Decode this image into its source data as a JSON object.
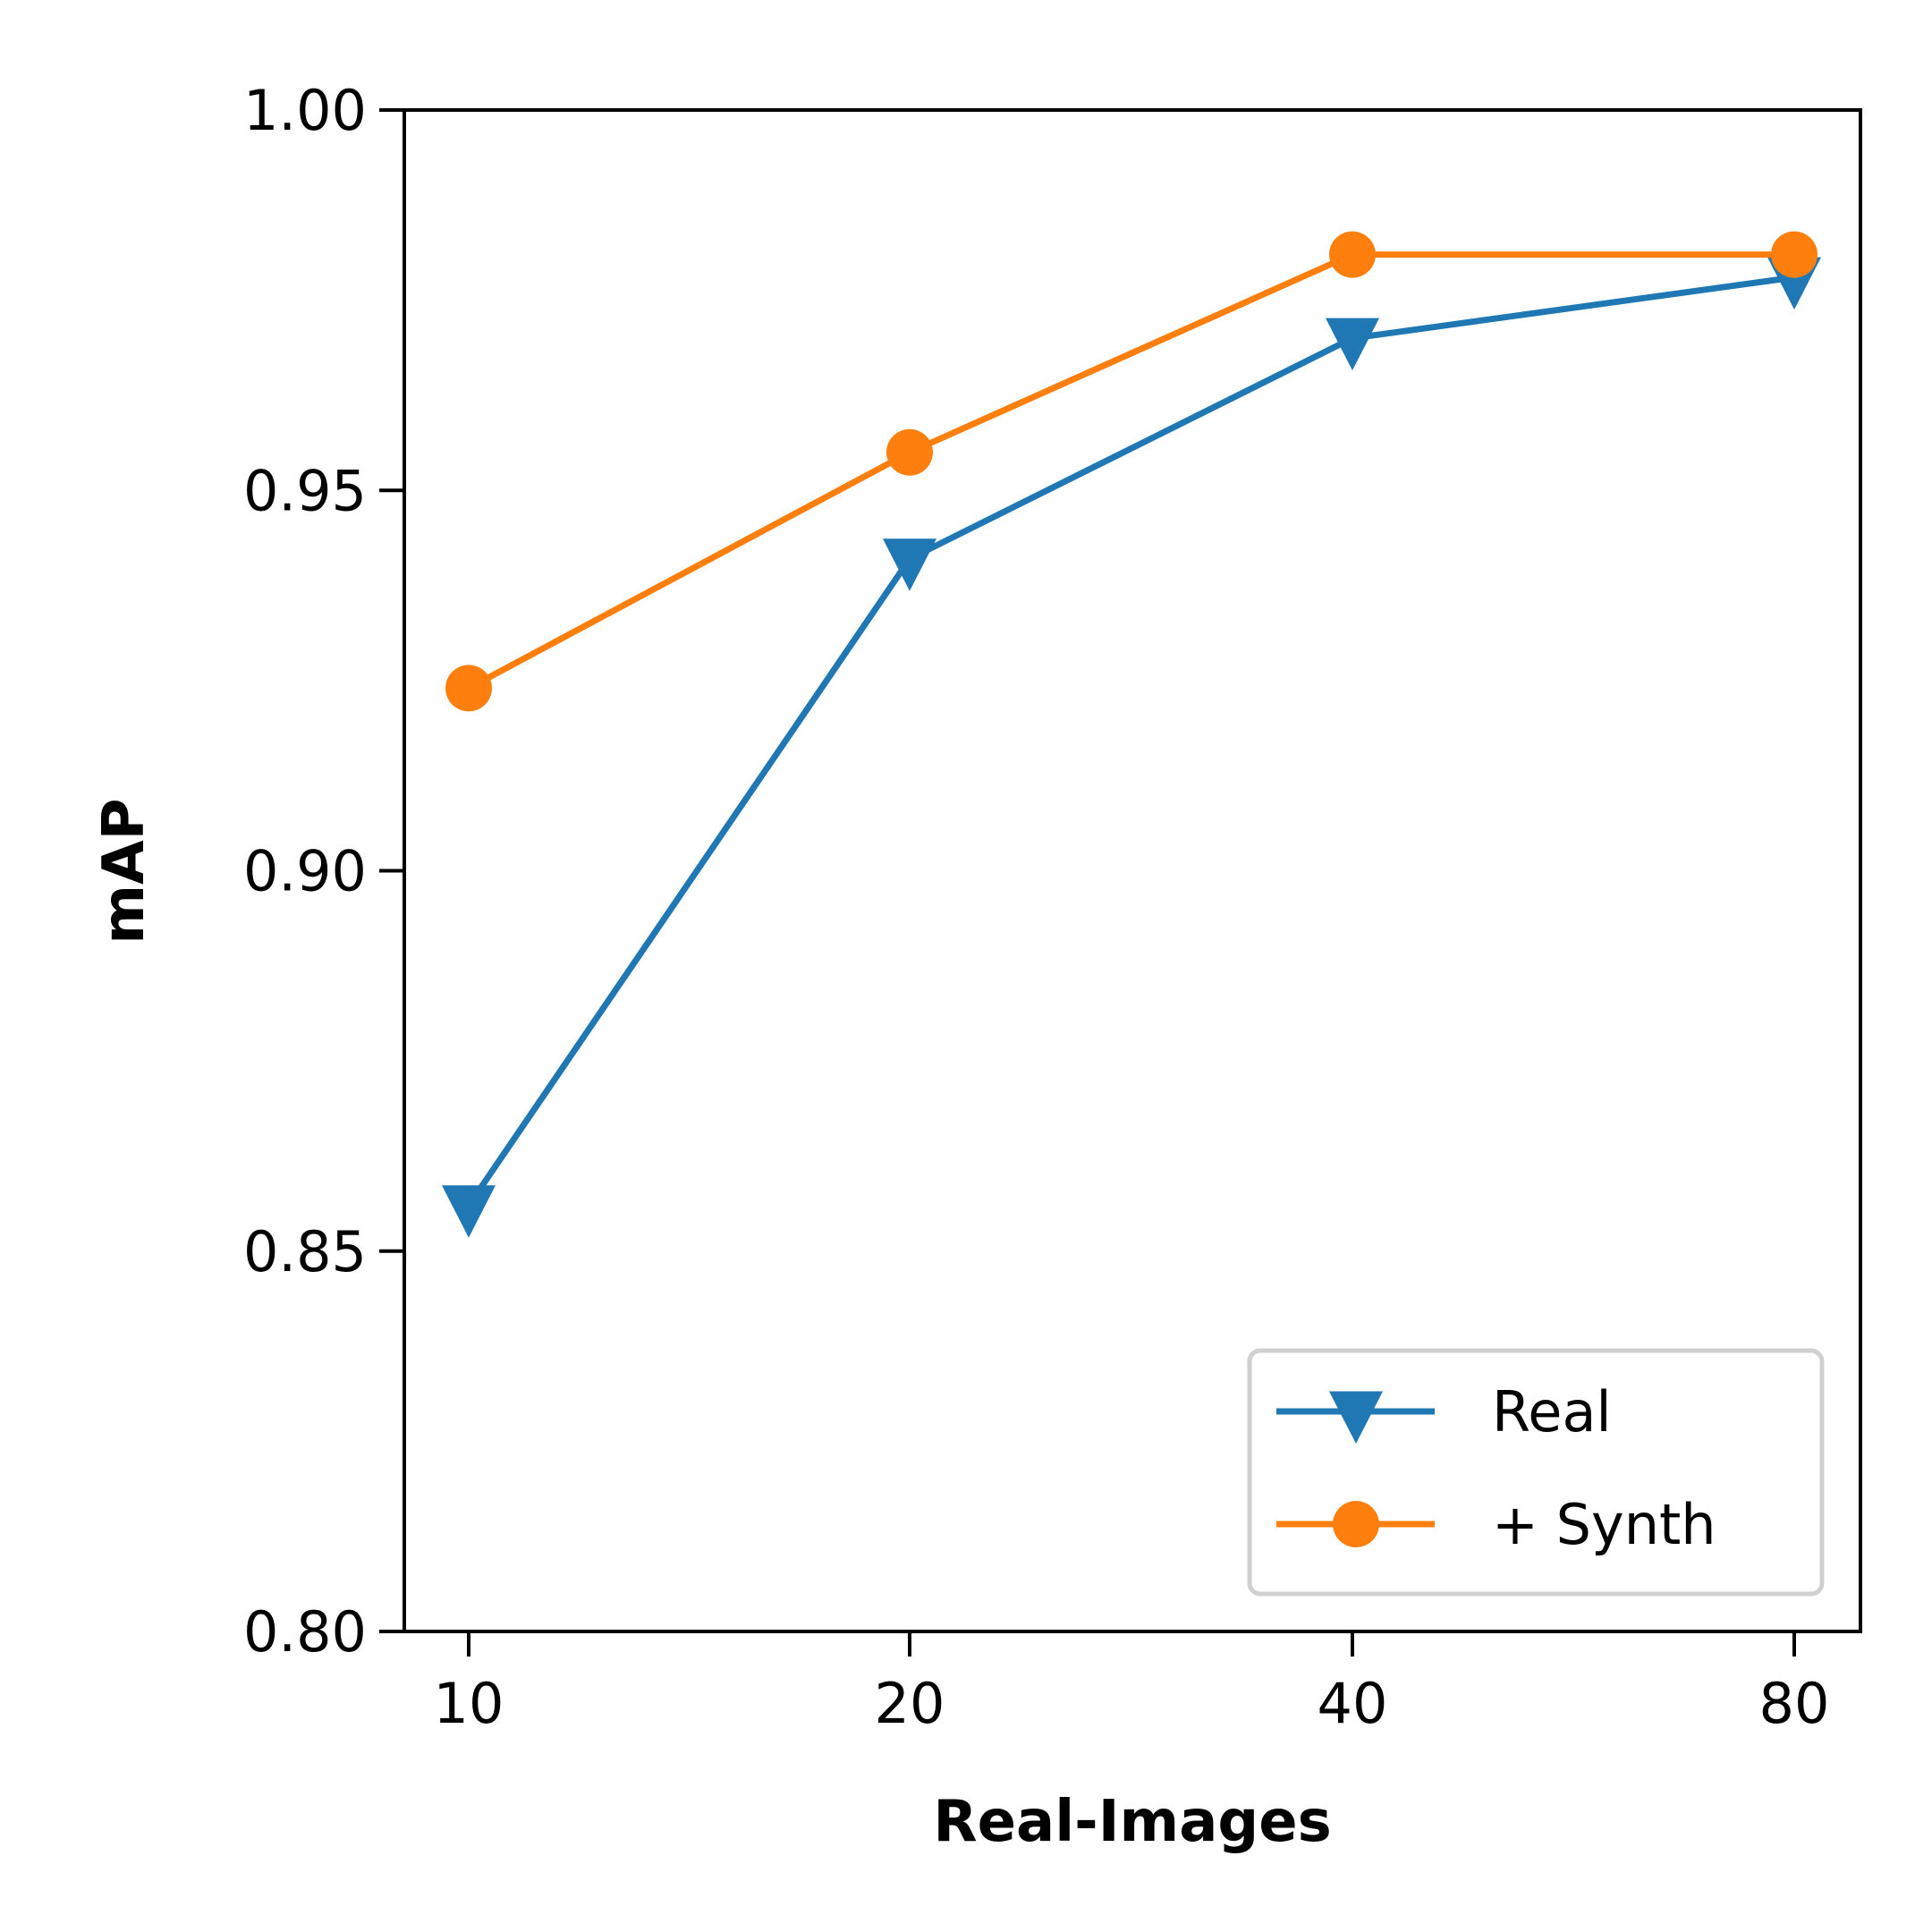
{
  "chart_data": {
    "type": "line",
    "title": "",
    "xlabel": "Real-Images",
    "ylabel": "mAP",
    "categories": [
      "10",
      "20",
      "40",
      "80"
    ],
    "ylim": [
      0.8,
      1.0
    ],
    "yticks": [
      "0.80",
      "0.85",
      "0.90",
      "0.95",
      "1.00"
    ],
    "grid": false,
    "legend_position": "lower-right",
    "series": [
      {
        "name": "Real",
        "marker": "triangle-down",
        "color": "#1f77b4",
        "values": [
          0.856,
          0.941,
          0.97,
          0.978
        ]
      },
      {
        "name": "+ Synth",
        "marker": "circle",
        "color": "#ff7f0e",
        "values": [
          0.924,
          0.955,
          0.981,
          0.981
        ]
      }
    ]
  }
}
